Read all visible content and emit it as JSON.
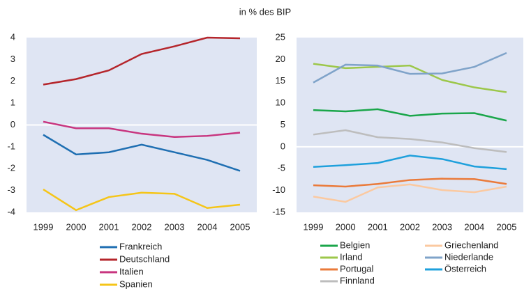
{
  "title": "in % des BIP",
  "chart_data": [
    {
      "type": "line",
      "categories": [
        "1999",
        "2000",
        "2001",
        "2002",
        "2003",
        "2004",
        "2005"
      ],
      "ylim": [
        -4,
        4
      ],
      "yticks": [
        -4,
        -3,
        -2,
        -1,
        0,
        1,
        2,
        3,
        4
      ],
      "zero_line": true,
      "legend_columns": 1,
      "series": [
        {
          "name": "Frankreich",
          "color": "#1f6fb2",
          "values": [
            -0.45,
            -1.35,
            -1.25,
            -0.9,
            -1.25,
            -1.6,
            -2.1
          ]
        },
        {
          "name": "Deutschland",
          "color": "#b5252b",
          "values": [
            1.85,
            2.1,
            2.5,
            3.25,
            3.6,
            4.0,
            3.97
          ]
        },
        {
          "name": "Italien",
          "color": "#c8357f",
          "values": [
            0.15,
            -0.15,
            -0.15,
            -0.4,
            -0.55,
            -0.5,
            -0.35
          ]
        },
        {
          "name": "Spanien",
          "color": "#f5c518",
          "values": [
            -2.95,
            -3.9,
            -3.3,
            -3.1,
            -3.15,
            -3.8,
            -3.65
          ]
        }
      ]
    },
    {
      "type": "line",
      "categories": [
        "1999",
        "2000",
        "2001",
        "2002",
        "2003",
        "2004",
        "2005"
      ],
      "ylim": [
        -15,
        25
      ],
      "yticks": [
        -15,
        -10,
        -5,
        0,
        5,
        10,
        15,
        20,
        25
      ],
      "zero_line": true,
      "legend_columns": 2,
      "series": [
        {
          "name": "Belgien",
          "color": "#1aa64a",
          "values": [
            8.4,
            8.1,
            8.6,
            7.1,
            7.6,
            7.7,
            6.0
          ]
        },
        {
          "name": "Griechenland",
          "color": "#fbc9a0",
          "values": [
            -11.4,
            -12.6,
            -9.3,
            -8.6,
            -9.9,
            -10.4,
            -9.1
          ]
        },
        {
          "name": "Irland",
          "color": "#9cc74a",
          "values": [
            19.0,
            18.0,
            18.3,
            18.6,
            15.3,
            13.6,
            12.5
          ]
        },
        {
          "name": "Niederlande",
          "color": "#7fa3c9",
          "values": [
            14.7,
            18.8,
            18.6,
            16.7,
            16.8,
            18.3,
            21.5
          ]
        },
        {
          "name": "Portugal",
          "color": "#ea7a3a",
          "values": [
            -8.8,
            -9.1,
            -8.5,
            -7.6,
            -7.3,
            -7.4,
            -8.5
          ]
        },
        {
          "name": "Österreich",
          "color": "#1ea0dc",
          "values": [
            -4.6,
            -4.2,
            -3.7,
            -2.0,
            -2.8,
            -4.5,
            -5.1
          ]
        },
        {
          "name": "Finnland",
          "color": "#bdbdbd",
          "values": [
            2.8,
            3.8,
            2.2,
            1.8,
            1.0,
            -0.3,
            -1.2
          ]
        }
      ]
    }
  ]
}
